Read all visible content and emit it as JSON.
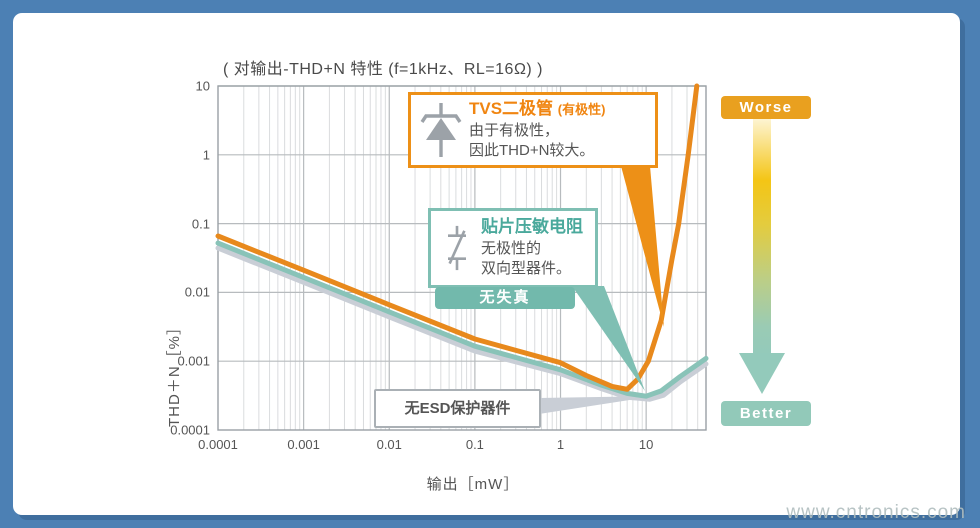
{
  "chart": {
    "title": "( 对输出-THD+N 特性 (f=1kHz、RL=16Ω) )",
    "x_axis_label": "输出［mW］",
    "y_axis_label": "THD＋N［%］",
    "x_tick_labels": [
      "0.0001",
      "0.001",
      "0.01",
      "0.1",
      "1",
      "10"
    ],
    "y_tick_labels": [
      "10",
      "1",
      "0.1",
      "0.01",
      "0.001",
      "0.0001"
    ]
  },
  "callouts": {
    "tvs": {
      "title": "TVS二极管",
      "qualifier": "(有极性)",
      "body_line1": "由于有极性，",
      "body_line2": "因此THD+N较大。"
    },
    "varistor": {
      "title": "贴片压敏电阻",
      "body_line1": "无极性的",
      "body_line2": "双向型器件。"
    },
    "no_distortion_badge": "无失真",
    "no_esd_badge": "无ESD保护器件"
  },
  "scale_legend": {
    "worse_label": "Worse",
    "better_label": "Better"
  },
  "watermark": "www.cntronics.com",
  "colors": {
    "frame_blue": "#4C80B4",
    "tvs_orange": "#E8891C",
    "varistor_teal": "#89C3B8",
    "no_protection_gray": "#C9CED6",
    "grid_major": "#B7BBBE",
    "grid_minor": "#DADCDE",
    "worse_badge": "#E9A01F",
    "better_badge": "#92C9B9"
  },
  "chart_data": {
    "type": "line",
    "title": "对输出-THD+N特性 (f=1kHz、RL=16Ω)",
    "xlabel": "输出[mW]",
    "ylabel": "THD+N[%]",
    "x_scale": "log",
    "y_scale": "log",
    "xlim": [
      0.0001,
      50
    ],
    "ylim": [
      0.0001,
      10
    ],
    "grid": true,
    "series": [
      {
        "name": "无ESD保护器件",
        "color": "#C9CED6",
        "x": [
          0.0001,
          0.001,
          0.01,
          0.1,
          1,
          3,
          6,
          11,
          16,
          25,
          40,
          50
        ],
        "y": [
          0.044,
          0.014,
          0.0044,
          0.0014,
          0.00066,
          0.0004,
          0.0003,
          0.00028,
          0.00032,
          0.0005,
          0.00075,
          0.00091
        ]
      },
      {
        "name": "贴片压敏电阻",
        "color": "#89C3B8",
        "x": [
          0.0001,
          0.001,
          0.01,
          0.1,
          1,
          3,
          6,
          10,
          15,
          25,
          40,
          50
        ],
        "y": [
          0.052,
          0.0165,
          0.0052,
          0.00165,
          0.00075,
          0.00045,
          0.00034,
          0.00031,
          0.00037,
          0.0006,
          0.0009,
          0.0011
        ]
      },
      {
        "name": "TVS二极管(有极性)",
        "color": "#E8891C",
        "x": [
          0.0001,
          0.001,
          0.01,
          0.1,
          1,
          2,
          4,
          6,
          8,
          10.6,
          15,
          20,
          24,
          31,
          39
        ],
        "y": [
          0.066,
          0.021,
          0.0066,
          0.0021,
          0.00095,
          0.00062,
          0.00043,
          0.00039,
          0.00055,
          0.001,
          0.0039,
          0.03,
          0.1,
          1,
          10
        ]
      }
    ]
  }
}
